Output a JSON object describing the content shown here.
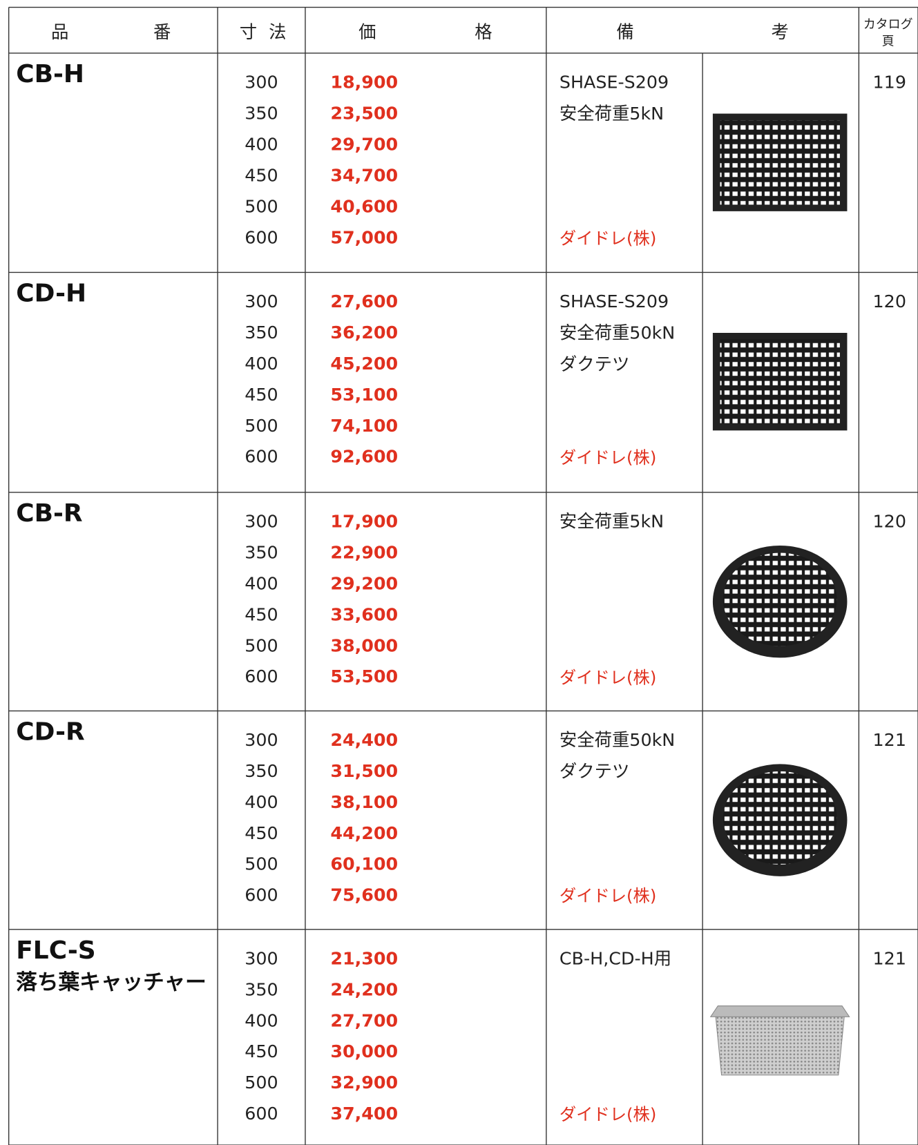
{
  "header": {
    "product": [
      "品",
      "番"
    ],
    "size": [
      "寸",
      "法"
    ],
    "price": [
      "価",
      "格"
    ],
    "remarks": [
      "備",
      "考"
    ],
    "catalog": [
      "カタログ",
      "頁"
    ]
  },
  "rows": [
    {
      "name": "CB-H",
      "sizes": [
        "300",
        "350",
        "400",
        "450",
        "500",
        "600"
      ],
      "prices": [
        "18,900",
        "23,500",
        "29,700",
        "34,700",
        "40,600",
        "57,000"
      ],
      "remarks": [
        "SHASE-S209",
        "安全荷重5kN"
      ],
      "maker": "ダイドレ(株)",
      "page": "119"
    },
    {
      "name": "CD-H",
      "sizes": [
        "300",
        "350",
        "400",
        "450",
        "500",
        "600"
      ],
      "prices": [
        "27,600",
        "36,200",
        "45,200",
        "53,100",
        "74,100",
        "92,600"
      ],
      "remarks": [
        "SHASE-S209",
        "安全荷重50kN",
        "ダクテツ"
      ],
      "maker": "ダイドレ(株)",
      "page": "120"
    },
    {
      "name": "CB-R",
      "sizes": [
        "300",
        "350",
        "400",
        "450",
        "500",
        "600"
      ],
      "prices": [
        "17,900",
        "22,900",
        "29,200",
        "33,600",
        "38,000",
        "53,500"
      ],
      "remarks": [
        "安全荷重5kN"
      ],
      "maker": "ダイドレ(株)",
      "page": "120"
    },
    {
      "name": "CD-R",
      "sizes": [
        "300",
        "350",
        "400",
        "450",
        "500",
        "600"
      ],
      "prices": [
        "24,400",
        "31,500",
        "38,100",
        "44,200",
        "60,100",
        "75,600"
      ],
      "remarks": [
        "安全荷重50kN",
        "ダクテツ"
      ],
      "maker": "ダイドレ(株)",
      "page": "121"
    },
    {
      "name": "FLC-S",
      "subname": "落ち葉キャッチャー",
      "sizes": [
        "300",
        "350",
        "400",
        "450",
        "500",
        "600"
      ],
      "prices": [
        "21,300",
        "24,200",
        "27,700",
        "30,000",
        "32,900",
        "37,400"
      ],
      "remarks": [
        "CB-H,CD-H用"
      ],
      "maker": "ダイドレ(株)",
      "page": "121"
    }
  ]
}
